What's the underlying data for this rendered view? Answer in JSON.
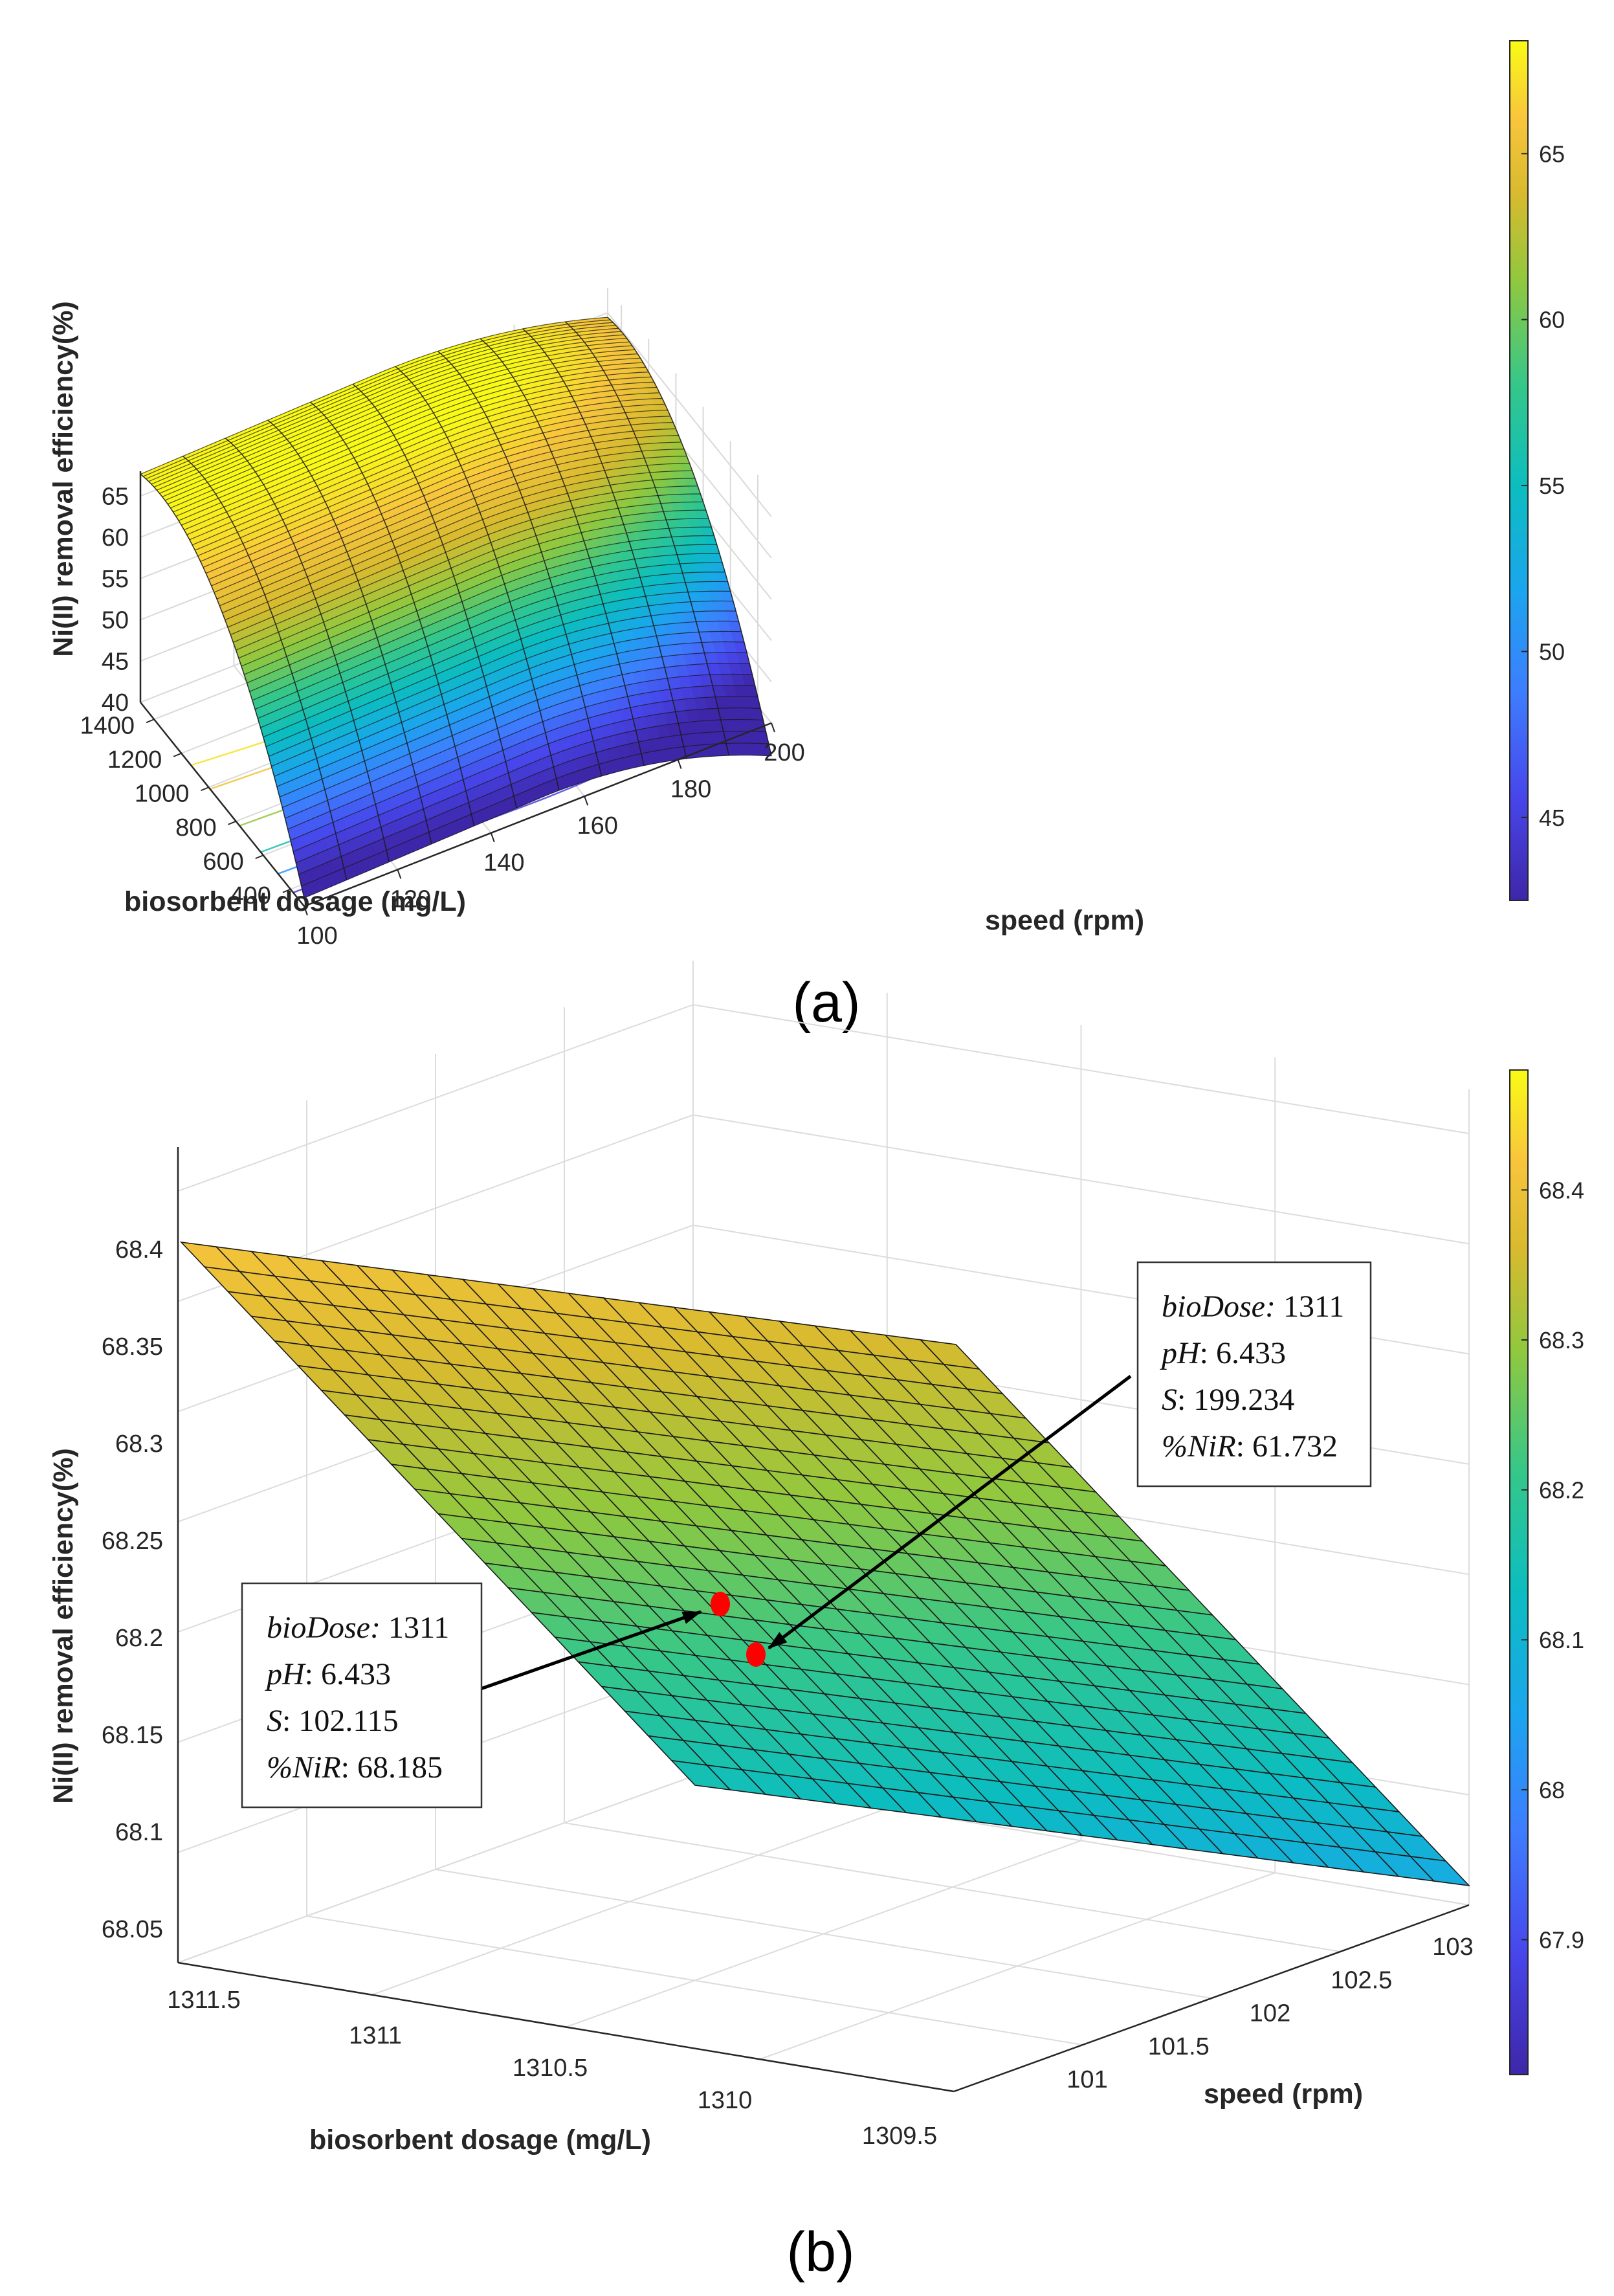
{
  "chart_data": [
    {
      "panel_label": "(a)",
      "type": "surface",
      "xlabel": "biosorbent dosage (mg/L)",
      "ylabel": "speed (rpm)",
      "zlabel": "Ni(II) removal efficiency(%)",
      "x_ticks": [
        "400",
        "600",
        "800",
        "1000",
        "1200",
        "1400"
      ],
      "y_ticks": [
        "100",
        "120",
        "140",
        "160",
        "180",
        "200"
      ],
      "z_ticks": [
        "40",
        "45",
        "50",
        "55",
        "60",
        "65"
      ],
      "xlim": [
        300,
        1500
      ],
      "ylim": [
        100,
        200
      ],
      "zlim": [
        40,
        68
      ],
      "surface_corners": {
        "dose_1500_speed_100": 67.0,
        "dose_300_speed_100": 40.5,
        "dose_300_speed_200": 51.0,
        "dose_1500_speed_200": 60.0,
        "ridge_peak": 68.4
      },
      "colorbar": {
        "ticks": [
          "45",
          "50",
          "55",
          "60",
          "65"
        ],
        "range": [
          42.5,
          68.4
        ]
      },
      "colormap": [
        "#3e26a8",
        "#4746eb",
        "#3e7cfe",
        "#1ba5ee",
        "#0bbdc0",
        "#35c78a",
        "#90c83e",
        "#d7ba2f",
        "#f8c53c",
        "#f9fb15"
      ],
      "grid": true
    },
    {
      "panel_label": "(b)",
      "type": "surface",
      "xlabel": "biosorbent dosage (mg/L)",
      "ylabel": "speed (rpm)",
      "zlabel": "Ni(II) removal efficiency(%)",
      "x_ticks": [
        "1309.5",
        "1310",
        "1310.5",
        "1311",
        "1311.5"
      ],
      "y_ticks": [
        "101",
        "101.5",
        "102",
        "102.5",
        "103"
      ],
      "z_ticks": [
        "68.05",
        "68.1",
        "68.15",
        "68.2",
        "68.25",
        "68.3",
        "68.35",
        "68.4"
      ],
      "zlim": [
        68.03,
        68.42
      ],
      "surface_corners": {
        "back_left": 68.4,
        "back_right": 68.33,
        "front_left": 68.12,
        "front_right": 68.05
      },
      "colorbar": {
        "ticks": [
          "67.9",
          "68",
          "68.1",
          "68.2",
          "68.3",
          "68.4"
        ],
        "range": [
          67.81,
          68.48
        ]
      },
      "points": [
        {
          "lines": [
            {
              "key": "bioDose",
              "value": "1311"
            },
            {
              "key": "pH",
              "value": "6.433"
            },
            {
              "key": "S",
              "value": "199.234"
            },
            {
              "key": "%NiR",
              "value": "61.732"
            }
          ]
        },
        {
          "lines": [
            {
              "key": "bioDose",
              "value": "1311"
            },
            {
              "key": "pH",
              "value": "6.433"
            },
            {
              "key": "S",
              "value": "102.115"
            },
            {
              "key": "%NiR",
              "value": "68.185"
            }
          ]
        }
      ],
      "point_color": "#ff0000",
      "grid": true
    }
  ]
}
